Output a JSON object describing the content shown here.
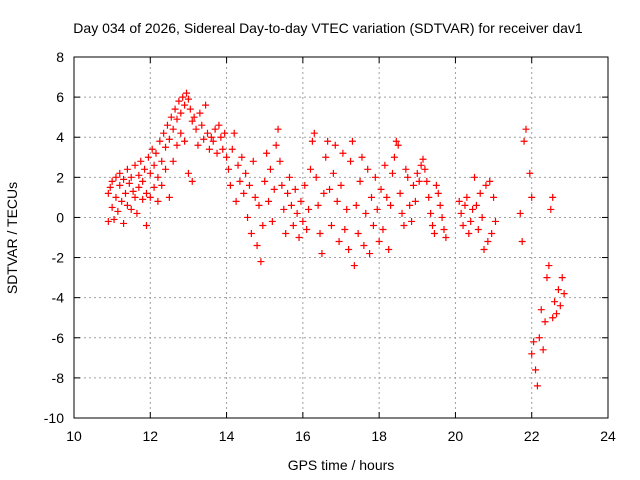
{
  "chart_data": {
    "type": "scatter",
    "title": "Day 034 of 2026, Sidereal Day-to-day VTEC variation (SDTVAR) for receiver dav1",
    "xlabel": "GPS time / hours",
    "ylabel": "SDTVAR / TECUs",
    "xlim": [
      10,
      24
    ],
    "ylim": [
      -10,
      8
    ],
    "xticks": [
      10,
      12,
      14,
      16,
      18,
      20,
      22,
      24
    ],
    "yticks": [
      -10,
      -8,
      -6,
      -4,
      -2,
      0,
      2,
      4,
      6,
      8
    ],
    "xtick_labels": [
      "10",
      "12",
      "14",
      "16",
      "18",
      "20",
      "22",
      "24"
    ],
    "ytick_labels": [
      "-10",
      "-8",
      "-6",
      "-4",
      "-2",
      "0",
      "2",
      "4",
      "6",
      "8"
    ],
    "grid": true,
    "marker": "+",
    "color": "#ff0000",
    "series": [
      {
        "name": "dav1",
        "points": [
          [
            10.9,
            1.2
          ],
          [
            10.9,
            -0.2
          ],
          [
            10.95,
            1.5
          ],
          [
            11.0,
            0.5
          ],
          [
            11.0,
            1.8
          ],
          [
            11.05,
            -0.1
          ],
          [
            11.1,
            2.0
          ],
          [
            11.1,
            1.0
          ],
          [
            11.15,
            0.3
          ],
          [
            11.2,
            1.6
          ],
          [
            11.2,
            2.2
          ],
          [
            11.25,
            0.8
          ],
          [
            11.3,
            1.9
          ],
          [
            11.3,
            -0.3
          ],
          [
            11.35,
            1.2
          ],
          [
            11.4,
            2.4
          ],
          [
            11.4,
            0.6
          ],
          [
            11.45,
            1.7
          ],
          [
            11.5,
            2.0
          ],
          [
            11.5,
            0.4
          ],
          [
            11.55,
            1.3
          ],
          [
            11.6,
            2.6
          ],
          [
            11.6,
            1.0
          ],
          [
            11.65,
            0.2
          ],
          [
            11.7,
            2.1
          ],
          [
            11.7,
            1.5
          ],
          [
            11.75,
            2.8
          ],
          [
            11.8,
            0.9
          ],
          [
            11.8,
            1.8
          ],
          [
            11.85,
            2.4
          ],
          [
            11.9,
            -0.4
          ],
          [
            11.9,
            1.2
          ],
          [
            11.95,
            3.0
          ],
          [
            12.0,
            2.2
          ],
          [
            12.0,
            1.0
          ],
          [
            12.05,
            3.4
          ],
          [
            12.1,
            2.6
          ],
          [
            12.1,
            1.5
          ],
          [
            12.15,
            3.2
          ],
          [
            12.2,
            2.0
          ],
          [
            12.2,
            0.8
          ],
          [
            12.25,
            3.8
          ],
          [
            12.3,
            2.8
          ],
          [
            12.3,
            1.6
          ],
          [
            12.35,
            4.2
          ],
          [
            12.4,
            3.5
          ],
          [
            12.4,
            2.4
          ],
          [
            12.45,
            4.6
          ],
          [
            12.5,
            3.9
          ],
          [
            12.5,
            1.0
          ],
          [
            12.55,
            5.0
          ],
          [
            12.6,
            4.4
          ],
          [
            12.6,
            2.8
          ],
          [
            12.65,
            5.4
          ],
          [
            12.7,
            4.9
          ],
          [
            12.7,
            3.6
          ],
          [
            12.75,
            5.8
          ],
          [
            12.8,
            5.2
          ],
          [
            12.8,
            4.2
          ],
          [
            12.85,
            6.0
          ],
          [
            12.9,
            5.6
          ],
          [
            12.9,
            3.8
          ],
          [
            12.95,
            6.2
          ],
          [
            13.0,
            5.9
          ],
          [
            13.0,
            2.2
          ],
          [
            13.05,
            5.4
          ],
          [
            13.1,
            4.8
          ],
          [
            13.1,
            1.8
          ],
          [
            13.15,
            5.0
          ],
          [
            13.2,
            4.4
          ],
          [
            13.25,
            3.6
          ],
          [
            13.3,
            5.2
          ],
          [
            13.35,
            4.6
          ],
          [
            13.4,
            3.9
          ],
          [
            13.45,
            5.6
          ],
          [
            13.5,
            4.2
          ],
          [
            13.55,
            3.4
          ],
          [
            13.6,
            4.0
          ],
          [
            13.65,
            3.8
          ],
          [
            13.7,
            4.4
          ],
          [
            13.75,
            3.2
          ],
          [
            13.8,
            4.6
          ],
          [
            13.85,
            4.0
          ],
          [
            13.9,
            3.4
          ],
          [
            13.95,
            4.2
          ],
          [
            14.0,
            3.0
          ],
          [
            14.05,
            2.4
          ],
          [
            14.1,
            1.6
          ],
          [
            14.15,
            3.4
          ],
          [
            14.2,
            4.2
          ],
          [
            14.25,
            0.8
          ],
          [
            14.3,
            2.6
          ],
          [
            14.35,
            1.8
          ],
          [
            14.4,
            3.0
          ],
          [
            14.45,
            1.2
          ],
          [
            14.5,
            2.2
          ],
          [
            14.55,
            0.0
          ],
          [
            14.6,
            1.6
          ],
          [
            14.65,
            -0.8
          ],
          [
            14.7,
            2.8
          ],
          [
            14.75,
            1.0
          ],
          [
            14.8,
            -1.4
          ],
          [
            14.85,
            0.6
          ],
          [
            14.9,
            -2.2
          ],
          [
            14.95,
            -0.4
          ],
          [
            15.0,
            1.8
          ],
          [
            15.05,
            3.2
          ],
          [
            15.1,
            0.8
          ],
          [
            15.15,
            2.4
          ],
          [
            15.2,
            -0.2
          ],
          [
            15.25,
            1.4
          ],
          [
            15.3,
            3.6
          ],
          [
            15.35,
            4.4
          ],
          [
            15.4,
            2.8
          ],
          [
            15.45,
            1.6
          ],
          [
            15.5,
            0.4
          ],
          [
            15.55,
            -0.8
          ],
          [
            15.6,
            1.2
          ],
          [
            15.65,
            2.0
          ],
          [
            15.7,
            0.6
          ],
          [
            15.75,
            -0.4
          ],
          [
            15.8,
            1.4
          ],
          [
            15.85,
            0.2
          ],
          [
            15.9,
            -1.0
          ],
          [
            15.95,
            0.8
          ],
          [
            16.0,
            -0.2
          ],
          [
            16.05,
            1.6
          ],
          [
            16.1,
            -0.6
          ],
          [
            16.15,
            0.4
          ],
          [
            16.2,
            2.4
          ],
          [
            16.25,
            3.8
          ],
          [
            16.3,
            4.2
          ],
          [
            16.35,
            2.0
          ],
          [
            16.4,
            0.6
          ],
          [
            16.45,
            -0.8
          ],
          [
            16.5,
            -1.8
          ],
          [
            16.55,
            1.2
          ],
          [
            16.6,
            3.0
          ],
          [
            16.65,
            3.8
          ],
          [
            16.7,
            1.4
          ],
          [
            16.75,
            -0.4
          ],
          [
            16.8,
            2.2
          ],
          [
            16.85,
            3.6
          ],
          [
            16.9,
            0.8
          ],
          [
            16.95,
            -1.2
          ],
          [
            17.0,
            1.6
          ],
          [
            17.05,
            3.2
          ],
          [
            17.1,
            -0.6
          ],
          [
            17.15,
            0.4
          ],
          [
            17.2,
            -1.6
          ],
          [
            17.25,
            2.8
          ],
          [
            17.3,
            3.8
          ],
          [
            17.35,
            -2.4
          ],
          [
            17.4,
            0.6
          ],
          [
            17.45,
            -0.8
          ],
          [
            17.5,
            1.8
          ],
          [
            17.55,
            3.0
          ],
          [
            17.6,
            -1.4
          ],
          [
            17.65,
            0.2
          ],
          [
            17.7,
            2.4
          ],
          [
            17.75,
            -1.8
          ],
          [
            17.8,
            1.0
          ],
          [
            17.85,
            -0.4
          ],
          [
            17.9,
            2.0
          ],
          [
            17.95,
            0.4
          ],
          [
            18.0,
            -1.2
          ],
          [
            18.05,
            1.4
          ],
          [
            18.1,
            -0.6
          ],
          [
            18.15,
            2.6
          ],
          [
            18.2,
            1.0
          ],
          [
            18.25,
            -1.6
          ],
          [
            18.3,
            0.6
          ],
          [
            18.35,
            2.2
          ],
          [
            18.4,
            3.0
          ],
          [
            18.45,
            3.8
          ],
          [
            18.5,
            3.6
          ],
          [
            18.55,
            1.2
          ],
          [
            18.6,
            0.2
          ],
          [
            18.65,
            -0.4
          ],
          [
            18.7,
            2.4
          ],
          [
            18.75,
            2.0
          ],
          [
            18.8,
            0.6
          ],
          [
            18.85,
            -0.2
          ],
          [
            18.9,
            1.6
          ],
          [
            18.95,
            0.8
          ],
          [
            19.0,
            2.2
          ],
          [
            19.05,
            1.8
          ],
          [
            19.1,
            2.6
          ],
          [
            19.15,
            2.9
          ],
          [
            19.2,
            2.4
          ],
          [
            19.25,
            1.8
          ],
          [
            19.3,
            1.0
          ],
          [
            19.35,
            0.2
          ],
          [
            19.4,
            -0.4
          ],
          [
            19.45,
            -0.8
          ],
          [
            19.5,
            1.6
          ],
          [
            19.55,
            1.2
          ],
          [
            19.6,
            0.6
          ],
          [
            19.65,
            0.0
          ],
          [
            19.7,
            -0.6
          ],
          [
            19.75,
            -1.0
          ],
          [
            20.1,
            0.8
          ],
          [
            20.15,
            0.2
          ],
          [
            20.2,
            -0.4
          ],
          [
            20.25,
            0.6
          ],
          [
            20.3,
            1.0
          ],
          [
            20.35,
            -0.8
          ],
          [
            20.4,
            -0.2
          ],
          [
            20.45,
            0.4
          ],
          [
            20.5,
            2.0
          ],
          [
            20.55,
            0.6
          ],
          [
            20.6,
            -0.6
          ],
          [
            20.65,
            1.2
          ],
          [
            20.7,
            0.0
          ],
          [
            20.75,
            -1.6
          ],
          [
            20.8,
            1.6
          ],
          [
            20.85,
            -1.2
          ],
          [
            20.9,
            1.8
          ],
          [
            20.95,
            -0.8
          ],
          [
            21.0,
            1.0
          ],
          [
            21.05,
            -0.2
          ],
          [
            21.7,
            0.2
          ],
          [
            21.75,
            -1.2
          ],
          [
            21.8,
            3.8
          ],
          [
            21.85,
            4.4
          ],
          [
            21.95,
            2.2
          ],
          [
            22.0,
            1.0
          ],
          [
            22.0,
            -6.8
          ],
          [
            22.05,
            -6.2
          ],
          [
            22.1,
            -7.6
          ],
          [
            22.15,
            -8.4
          ],
          [
            22.2,
            -6.0
          ],
          [
            22.25,
            -4.6
          ],
          [
            22.3,
            -6.6
          ],
          [
            22.35,
            -5.2
          ],
          [
            22.4,
            -3.0
          ],
          [
            22.45,
            -2.4
          ],
          [
            22.5,
            0.4
          ],
          [
            22.55,
            1.0
          ],
          [
            22.55,
            -5.0
          ],
          [
            22.6,
            -4.2
          ],
          [
            22.65,
            -4.8
          ],
          [
            22.7,
            -3.6
          ],
          [
            22.75,
            -4.4
          ],
          [
            22.8,
            -3.0
          ],
          [
            22.85,
            -3.8
          ]
        ]
      }
    ]
  }
}
